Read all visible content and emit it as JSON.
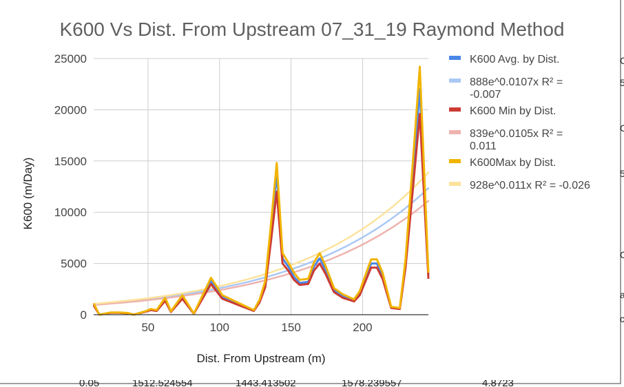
{
  "chart_data": {
    "type": "line",
    "title": "K600 Vs Dist. From Upstream 07_31_19 Raymond Method",
    "xlabel": "Dist. From Upstream (m)",
    "ylabel": "K600 (m/Day)",
    "xlim": [
      12,
      246
    ],
    "ylim": [
      0,
      25000
    ],
    "xticks": [
      50,
      100,
      150,
      200
    ],
    "yticks": [
      0,
      5000,
      10000,
      15000,
      20000,
      25000
    ],
    "grid": true,
    "legend_position": "right",
    "x": [
      12,
      16,
      24,
      30,
      36,
      40,
      48,
      52,
      56,
      62,
      66,
      74,
      82,
      94,
      102,
      114,
      124,
      128,
      132,
      136,
      140,
      144,
      148,
      152,
      156,
      162,
      166,
      170,
      174,
      180,
      186,
      194,
      198,
      206,
      210,
      214,
      220,
      226,
      230,
      236,
      240,
      246
    ],
    "series": [
      {
        "name": "K600 Avg. by Dist.",
        "color": "#4a86e8",
        "values": [
          1000,
          0,
          200,
          200,
          150,
          0,
          300,
          500,
          400,
          1500,
          300,
          1700,
          100,
          3300,
          1700,
          1000,
          400,
          1300,
          3000,
          8000,
          13700,
          5500,
          4700,
          3700,
          3100,
          3200,
          4700,
          5500,
          4400,
          2400,
          1800,
          1400,
          2100,
          5000,
          5000,
          3800,
          700,
          600,
          5000,
          15000,
          22000,
          3800
        ]
      },
      {
        "name": "K600 Min by Dist.",
        "color": "#cc3b33",
        "values": [
          900,
          0,
          180,
          180,
          130,
          0,
          280,
          450,
          360,
          1350,
          270,
          1550,
          90,
          3000,
          1550,
          900,
          360,
          1200,
          2700,
          7200,
          12000,
          5000,
          4300,
          3400,
          2900,
          3000,
          4300,
          5000,
          4000,
          2200,
          1650,
          1300,
          1900,
          4600,
          4600,
          3500,
          650,
          550,
          4600,
          13500,
          19600,
          3500
        ]
      },
      {
        "name": "K600Max by Dist.",
        "color": "#f1b400",
        "values": [
          1100,
          0,
          220,
          220,
          170,
          0,
          330,
          560,
          450,
          1650,
          330,
          1900,
          110,
          3600,
          1900,
          1100,
          450,
          1450,
          3300,
          8900,
          14800,
          6000,
          5100,
          4100,
          3400,
          3500,
          5100,
          6000,
          4800,
          2600,
          2000,
          1500,
          2300,
          5400,
          5400,
          4100,
          770,
          660,
          5400,
          16500,
          24200,
          4100
        ]
      }
    ],
    "trendlines": [
      {
        "name": "888e^0.0107x R² = -0.007",
        "series": "K600 Avg. by Dist.",
        "a": 888,
        "b": 0.0107,
        "color": "#aac8f4"
      },
      {
        "name": "839e^0.0105x R² = 0.011",
        "series": "K600 Min by Dist.",
        "a": 839,
        "b": 0.0105,
        "color": "#eeb3ae"
      },
      {
        "name": "928e^0.011x R² = -0.026",
        "series": "K600Max by Dist.",
        "a": 928,
        "b": 0.011,
        "color": "#fce29c"
      }
    ],
    "legend": [
      {
        "label": "K600 Avg. by Dist.",
        "lines": [
          "K600 Avg. by Dist."
        ],
        "color": "#4a86e8"
      },
      {
        "label": "888e^0.0107x R² = -0.007",
        "lines": [
          "888e^0.0107x R² =",
          "-0.007"
        ],
        "color": "#aac8f4"
      },
      {
        "label": "K600 Min by Dist.",
        "lines": [
          "K600 Min by Dist."
        ],
        "color": "#cc3b33"
      },
      {
        "label": "839e^0.0105x R² = 0.011",
        "lines": [
          "839e^0.0105x R² =",
          "0.011"
        ],
        "color": "#eeb3ae"
      },
      {
        "label": "K600Max by Dist.",
        "lines": [
          "K600Max by Dist."
        ],
        "color": "#f1b400"
      },
      {
        "label": "928e^0.011x R² = -0.026",
        "lines": [
          "928e^0.011x R² = -0.026"
        ],
        "color": "#fce29c"
      }
    ]
  },
  "edge_fragments": [
    "C",
    "5",
    "C",
    "5",
    "C",
    "a",
    "c"
  ],
  "below_row": [
    "0.05",
    "1512.524554",
    "1443.413502",
    "1578.239557",
    "4.8723"
  ]
}
